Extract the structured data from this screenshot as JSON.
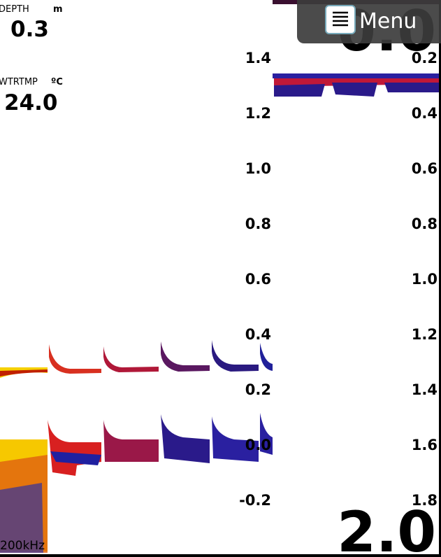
{
  "depth": {
    "label": "DEPTH",
    "unit": "m",
    "value": "0.3"
  },
  "water_temp": {
    "label": "WTRTMP",
    "unit": "ºC",
    "value": "24.0"
  },
  "left_scale": [
    "1.4",
    "1.2",
    "1.0",
    "0.8",
    "0.6",
    "0.4",
    "0.2",
    "0.0",
    "-0.2"
  ],
  "right_scale": [
    "0.2",
    "0.4",
    "0.6",
    "0.8",
    "1.0",
    "1.2",
    "1.4",
    "1.6",
    "1.8"
  ],
  "range_top": "0.0",
  "range_bottom": "2.0",
  "frequency": "200kHz",
  "menu": {
    "label": "Menu"
  }
}
